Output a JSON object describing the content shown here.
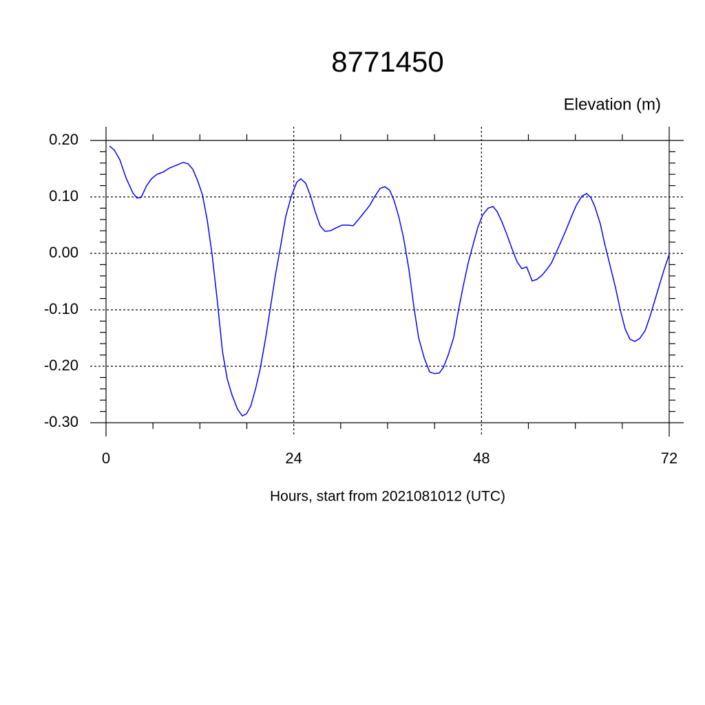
{
  "chart_data": {
    "type": "line",
    "title": "8771450",
    "y_label": "Elevation (m)",
    "x_label": "Hours, start from 2021081012 (UTC)",
    "xlim": [
      0,
      72
    ],
    "ylim": [
      -0.3,
      0.2
    ],
    "xticks": [
      0,
      24,
      48,
      72
    ],
    "xminorticks": [
      6,
      12,
      18,
      30,
      36,
      42,
      54,
      60,
      66
    ],
    "yticks": [
      {
        "value": -0.3,
        "label": "-0.30"
      },
      {
        "value": -0.2,
        "label": "-0.20"
      },
      {
        "value": -0.1,
        "label": "-0.10"
      },
      {
        "value": 0,
        "label": "0.00"
      },
      {
        "value": 0.1,
        "label": "0.10"
      },
      {
        "value": 0.2,
        "label": "0.20"
      }
    ],
    "yminorticks": [
      -0.28,
      -0.26,
      -0.24,
      -0.22,
      -0.18,
      -0.16,
      -0.14,
      -0.12,
      -0.08,
      -0.06,
      -0.04,
      -0.02,
      0.02,
      0.04,
      0.06,
      0.08,
      0.12,
      0.14,
      0.16,
      0.18
    ],
    "grid": true,
    "x": [
      0.44,
      1.06,
      1.76,
      2.55,
      3.43,
      3.96,
      4.49,
      5.19,
      5.81,
      6.51,
      7.31,
      8.1,
      8.98,
      9.86,
      10.47,
      11.09,
      11.71,
      12.32,
      12.94,
      13.56,
      14.26,
      14.88,
      15.49,
      16.11,
      16.81,
      17.43,
      17.96,
      18.49,
      19.1,
      19.72,
      20.42,
      21.04,
      21.65,
      22.36,
      22.97,
      23.68,
      24.38,
      24.91,
      25.53,
      26.14,
      26.76,
      27.37,
      27.99,
      28.69,
      29.4,
      30.19,
      30.9,
      31.6,
      32.22,
      32.92,
      33.71,
      34.42,
      35.03,
      35.65,
      36.26,
      36.79,
      37.41,
      38.03,
      38.73,
      39.35,
      39.96,
      40.67,
      41.37,
      41.99,
      42.61,
      43.13,
      43.75,
      44.45,
      45.07,
      45.68,
      46.3,
      46.92,
      47.53,
      48.15,
      48.85,
      49.47,
      50.0,
      50.61,
      51.23,
      51.93,
      52.55,
      53.16,
      53.78,
      54.49,
      55.1,
      55.72,
      56.33,
      56.95,
      57.57,
      58.27,
      58.89,
      59.5,
      60.12,
      60.82,
      61.44,
      61.97,
      62.49,
      63.2,
      63.73,
      64.43,
      65.14,
      65.75,
      66.37,
      66.98,
      67.6,
      68.22,
      68.92,
      69.54,
      70.15,
      70.77,
      71.39,
      72.0
    ],
    "series": [
      {
        "color": "#0000ff",
        "values": [
          0.19,
          0.183,
          0.166,
          0.134,
          0.107,
          0.098,
          0.099,
          0.12,
          0.132,
          0.14,
          0.144,
          0.151,
          0.156,
          0.161,
          0.159,
          0.149,
          0.129,
          0.104,
          0.059,
          -0.002,
          -0.088,
          -0.173,
          -0.222,
          -0.251,
          -0.276,
          -0.288,
          -0.284,
          -0.271,
          -0.241,
          -0.204,
          -0.149,
          -0.094,
          -0.039,
          0.016,
          0.065,
          0.101,
          0.126,
          0.132,
          0.124,
          0.102,
          0.073,
          0.049,
          0.039,
          0.04,
          0.045,
          0.05,
          0.05,
          0.049,
          0.059,
          0.071,
          0.085,
          0.102,
          0.115,
          0.118,
          0.112,
          0.095,
          0.066,
          0.028,
          -0.029,
          -0.094,
          -0.149,
          -0.185,
          -0.21,
          -0.213,
          -0.212,
          -0.202,
          -0.18,
          -0.149,
          -0.1,
          -0.057,
          -0.017,
          0.015,
          0.046,
          0.068,
          0.08,
          0.083,
          0.074,
          0.056,
          0.034,
          0.007,
          -0.015,
          -0.027,
          -0.024,
          -0.049,
          -0.046,
          -0.039,
          -0.029,
          -0.017,
          0.002,
          0.024,
          0.044,
          0.065,
          0.085,
          0.101,
          0.106,
          0.099,
          0.083,
          0.052,
          0.018,
          -0.021,
          -0.061,
          -0.1,
          -0.134,
          -0.152,
          -0.156,
          -0.151,
          -0.137,
          -0.112,
          -0.084,
          -0.055,
          -0.027,
          -0.002
        ]
      }
    ]
  }
}
